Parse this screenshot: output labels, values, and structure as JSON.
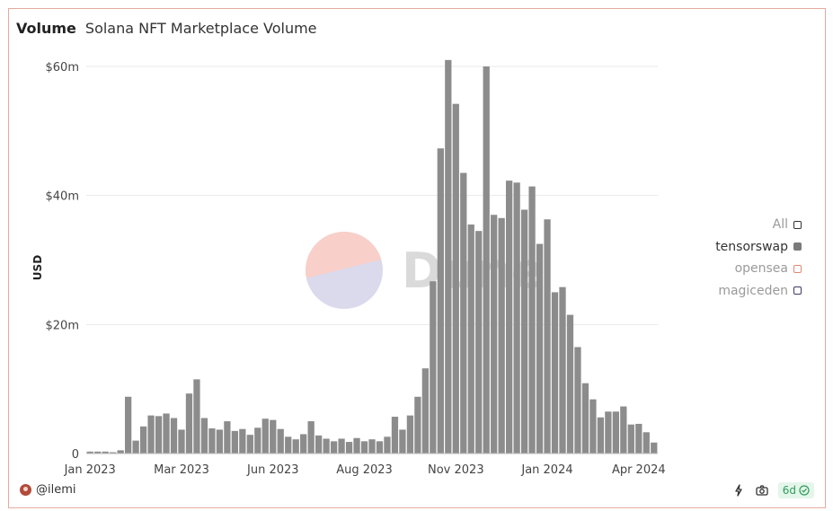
{
  "header": {
    "title": "Volume",
    "subtitle": "Solana NFT Marketplace Volume"
  },
  "legend": {
    "items": [
      {
        "label": "All",
        "color": "#333333",
        "fill": "#ffffff",
        "text_color": "#9a9a9a"
      },
      {
        "label": "tensorswap",
        "color": "#7a7a7a",
        "fill": "#7a7a7a",
        "text_color": "#333333"
      },
      {
        "label": "opensea",
        "color": "#e08a6e",
        "fill": "#ffffff",
        "text_color": "#9a9a9a"
      },
      {
        "label": "magiceden",
        "color": "#3a3a66",
        "fill": "#ffffff",
        "text_color": "#9a9a9a"
      }
    ]
  },
  "watermark": {
    "text": "Dune"
  },
  "footer": {
    "author": "@ilemi",
    "age": "6d"
  },
  "chart_data": {
    "type": "bar",
    "title": "Solana NFT Marketplace Volume",
    "ylabel": "USD",
    "xlabel": "",
    "ylim": [
      0,
      60000000
    ],
    "yticks": [
      {
        "value": 0,
        "label": "0"
      },
      {
        "value": 20000000,
        "label": "$20m"
      },
      {
        "value": 40000000,
        "label": "$40m"
      },
      {
        "value": 60000000,
        "label": "$60m"
      }
    ],
    "xticks": [
      {
        "index": 0,
        "label": "Jan 2023"
      },
      {
        "index": 12,
        "label": "Mar 2023"
      },
      {
        "index": 24,
        "label": "Jun 2023"
      },
      {
        "index": 36,
        "label": "Aug 2023"
      },
      {
        "index": 48,
        "label": "Nov 2023"
      },
      {
        "index": 60,
        "label": "Jan 2024"
      },
      {
        "index": 72,
        "label": "Apr 2024"
      }
    ],
    "series": [
      {
        "name": "tensorswap",
        "color": "#8c8c8c",
        "values": [
          0.3,
          0.3,
          0.3,
          0.2,
          0.5,
          8.8,
          2.0,
          4.2,
          5.9,
          5.8,
          6.2,
          5.5,
          3.7,
          9.3,
          11.5,
          5.5,
          3.9,
          3.7,
          5.0,
          3.5,
          3.8,
          2.9,
          4.0,
          5.4,
          5.2,
          3.8,
          2.6,
          2.2,
          3.0,
          5.0,
          2.8,
          2.3,
          1.9,
          2.3,
          1.8,
          2.4,
          1.9,
          2.2,
          1.9,
          2.6,
          5.7,
          3.7,
          5.9,
          8.8,
          13.2,
          26.7,
          47.3,
          61.0,
          54.2,
          43.5,
          35.5,
          34.5,
          60.0,
          37.0,
          36.5,
          42.3,
          42.0,
          37.8,
          41.4,
          32.5,
          36.3,
          25.0,
          25.8,
          21.5,
          16.5,
          10.9,
          8.4,
          5.6,
          6.5,
          6.5,
          7.3,
          4.5,
          4.6,
          3.3,
          1.7
        ]
      }
    ],
    "value_unit": "millions USD"
  }
}
